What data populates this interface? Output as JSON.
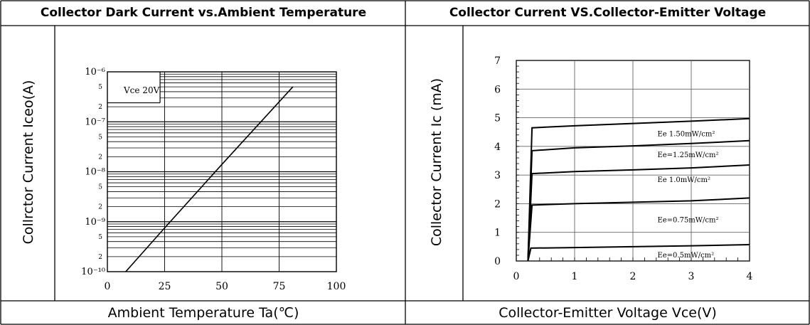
{
  "left": {
    "header": "Collector Dark Current vs.Ambient Temperature",
    "ylabel": "Collrctor  Current Iceo(A)",
    "xlabel": "Ambient Temperature Ta(℃)"
  },
  "right": {
    "header": "Collector Current VS.Collector-Emitter Voltage",
    "ylabel": "Collector Current Ic (mA)",
    "xlabel": "Collector-Emitter Voltage Vce(V)"
  },
  "chart_data": [
    {
      "type": "line",
      "y_scale": "log",
      "x_ticks": [
        "0",
        "25",
        "50",
        "75",
        "100"
      ],
      "xlim": [
        0,
        100
      ],
      "ylim": [
        1e-10,
        1e-06
      ],
      "y_decade_labels": [
        "10⁻⁶",
        "10⁻⁷",
        "10⁻⁸",
        "10⁻⁹",
        "10⁻¹⁰"
      ],
      "y_minor_labels": [
        "5",
        "2"
      ],
      "annotation": "Vce 20V",
      "grid": true,
      "series": [
        {
          "x": [
            8,
            25,
            50,
            81
          ],
          "y": [
            1e-10,
            7.5e-10,
            1.4e-08,
            5e-07
          ]
        }
      ]
    },
    {
      "type": "line",
      "x_ticks": [
        "0",
        "1",
        "2",
        "3",
        "4"
      ],
      "y_ticks": [
        "0",
        "1",
        "2",
        "3",
        "4",
        "5",
        "6",
        "7"
      ],
      "xlim": [
        0,
        4
      ],
      "ylim": [
        0,
        7
      ],
      "grid": true,
      "series": [
        {
          "name": "Ee 1.50mW/cm²",
          "x": [
            0.2,
            0.27,
            1,
            2,
            3,
            4
          ],
          "y": [
            0,
            4.65,
            4.72,
            4.8,
            4.88,
            4.97
          ]
        },
        {
          "name": "Ee=1.25mW/cm²",
          "x": [
            0.2,
            0.27,
            1,
            2,
            3,
            4
          ],
          "y": [
            0,
            3.85,
            3.95,
            4.02,
            4.1,
            4.2
          ]
        },
        {
          "name": "Ee 1.0mW/cm²",
          "x": [
            0.2,
            0.27,
            1,
            2,
            3,
            4
          ],
          "y": [
            0,
            3.05,
            3.12,
            3.18,
            3.25,
            3.35
          ]
        },
        {
          "name": "Ee=0.75mW/cm²",
          "x": [
            0.2,
            0.27,
            1,
            2,
            3,
            4
          ],
          "y": [
            0,
            1.95,
            2.0,
            2.05,
            2.1,
            2.2
          ]
        },
        {
          "name": "Ee=0.5mW/cm²",
          "x": [
            0.2,
            0.25,
            1,
            2,
            3,
            4
          ],
          "y": [
            0,
            0.45,
            0.47,
            0.5,
            0.53,
            0.57
          ]
        }
      ]
    }
  ]
}
